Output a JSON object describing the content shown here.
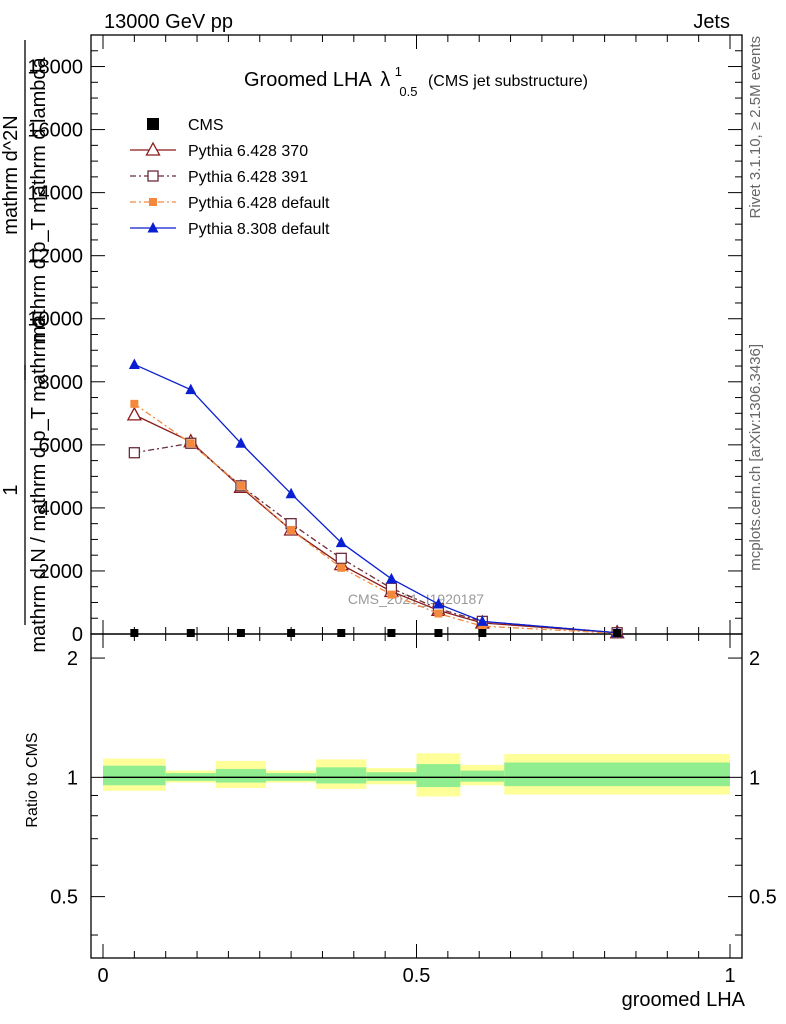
{
  "header": {
    "left": "13000 GeV pp",
    "right": "Jets"
  },
  "side_labels": {
    "rivet": "Rivet 3.1.10, ≥ 2.5M events",
    "mcplots": "mcplots.cern.ch [arXiv:1306.3436]"
  },
  "watermark": "CMS_2021_I1920187",
  "chart_data": {
    "type": "line",
    "title": {
      "main": "Groomed LHA",
      "symbol": "λ",
      "superscript": "1",
      "subscript": "0.5",
      "suffix": "(CMS jet substructure)"
    },
    "ylabel_upper": {
      "numerator": "1",
      "denominator": "mathrm d N / mathrm d p_T mathrm d",
      "top_num": "mathrm d^2N",
      "top_den": "mathrm d p_T mathrm d lambda"
    },
    "ylabel_lower": "Ratio to CMS",
    "xlabel": "groomed LHA",
    "xlim": [
      0,
      1
    ],
    "ylim_main": [
      0,
      19000
    ],
    "ylim_ratio": [
      0.35,
      2.3
    ],
    "x_ticks": [
      {
        "v": 0,
        "label": "0"
      },
      {
        "v": 0.5,
        "label": "0.5"
      },
      {
        "v": 1,
        "label": "1"
      }
    ],
    "y_ticks_main": [
      {
        "v": 0,
        "label": "0"
      },
      {
        "v": 2000,
        "label": "2000"
      },
      {
        "v": 4000,
        "label": "4000"
      },
      {
        "v": 6000,
        "label": "6000"
      },
      {
        "v": 8000,
        "label": "8000"
      },
      {
        "v": 10000,
        "label": "10000"
      },
      {
        "v": 12000,
        "label": "12000"
      },
      {
        "v": 14000,
        "label": "14000"
      },
      {
        "v": 16000,
        "label": "16000"
      },
      {
        "v": 18000,
        "label": "18000"
      }
    ],
    "y_ticks_ratio": [
      {
        "v": 0.5,
        "label": "0.5"
      },
      {
        "v": 1,
        "label": "1"
      },
      {
        "v": 2,
        "label": "2"
      }
    ],
    "x": [
      0.05,
      0.14,
      0.22,
      0.3,
      0.38,
      0.46,
      0.535,
      0.605,
      0.82
    ],
    "series": [
      {
        "name": "CMS",
        "color": "#000000",
        "marker": "square-filled",
        "dash": "none",
        "values": [
          30,
          30,
          30,
          30,
          30,
          30,
          30,
          30,
          30
        ]
      },
      {
        "name": "Pythia 6.428 370",
        "color": "#8b1a1a",
        "marker": "triangle-open",
        "dash": "solid",
        "values": [
          6950,
          6100,
          4650,
          3300,
          2200,
          1350,
          750,
          350,
          40
        ]
      },
      {
        "name": "Pythia 6.428 391",
        "color": "#6b2d3a",
        "marker": "square-open",
        "dash": "dashdot",
        "values": [
          5750,
          6050,
          4700,
          3500,
          2400,
          1450,
          800,
          400,
          40
        ]
      },
      {
        "name": "Pythia 6.428 default",
        "color": "#f4893d",
        "marker": "square-filled-small",
        "dash": "dashdot",
        "values": [
          7300,
          6050,
          4700,
          3300,
          2100,
          1250,
          650,
          250,
          20
        ]
      },
      {
        "name": "Pythia 8.308 default",
        "color": "#0a1fd1",
        "marker": "triangle-filled",
        "dash": "solid",
        "values": [
          8550,
          7750,
          6050,
          4450,
          2900,
          1750,
          950,
          400,
          40
        ]
      }
    ],
    "ratio_bands": [
      {
        "x0": 0.0,
        "x1": 0.1,
        "yellow": [
          0.925,
          1.115
        ],
        "green": [
          0.955,
          1.07
        ]
      },
      {
        "x0": 0.1,
        "x1": 0.18,
        "yellow": [
          0.97,
          1.04
        ],
        "green": [
          0.98,
          1.025
        ]
      },
      {
        "x0": 0.18,
        "x1": 0.26,
        "yellow": [
          0.94,
          1.1
        ],
        "green": [
          0.97,
          1.05
        ]
      },
      {
        "x0": 0.26,
        "x1": 0.34,
        "yellow": [
          0.97,
          1.04
        ],
        "green": [
          0.98,
          1.025
        ]
      },
      {
        "x0": 0.34,
        "x1": 0.42,
        "yellow": [
          0.935,
          1.11
        ],
        "green": [
          0.965,
          1.06
        ]
      },
      {
        "x0": 0.42,
        "x1": 0.5,
        "yellow": [
          0.96,
          1.055
        ],
        "green": [
          0.98,
          1.03
        ]
      },
      {
        "x0": 0.5,
        "x1": 0.57,
        "yellow": [
          0.895,
          1.15
        ],
        "green": [
          0.945,
          1.08
        ]
      },
      {
        "x0": 0.57,
        "x1": 0.64,
        "yellow": [
          0.955,
          1.075
        ],
        "green": [
          0.975,
          1.04
        ]
      },
      {
        "x0": 0.64,
        "x1": 1.0,
        "yellow": [
          0.905,
          1.145
        ],
        "green": [
          0.95,
          1.09
        ]
      }
    ],
    "grid": false,
    "legend_position": "top-left"
  }
}
